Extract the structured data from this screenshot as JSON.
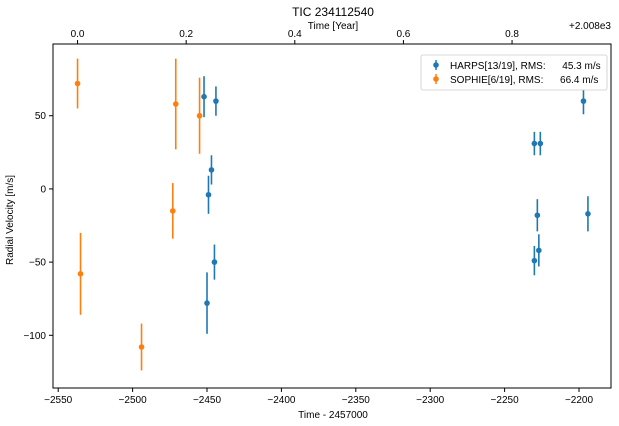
{
  "chart_data": {
    "type": "scatter",
    "title": "TIC 234112540",
    "xlabel": "Time - 2457000",
    "ylabel": "Radial Velocity [m/s]",
    "top_xlabel": "Time [Year]",
    "top_offset_label": "+2.008e3",
    "xlim": [
      -2553.5,
      -2178.5
    ],
    "ylim": [
      -136,
      99
    ],
    "xticks": [
      -2550,
      -2500,
      -2450,
      -2400,
      -2350,
      -2300,
      -2250,
      -2200
    ],
    "xtick_labels": [
      "−2550",
      "−2500",
      "−2450",
      "−2400",
      "−2350",
      "−2300",
      "−2250",
      "−2200"
    ],
    "yticks": [
      -100,
      -50,
      0,
      50
    ],
    "ytick_labels": [
      "−100",
      "−50",
      "0",
      "50"
    ],
    "top_ticks": [
      -2537,
      -2464,
      -2391,
      -2318,
      -2245
    ],
    "top_tick_labels": [
      "0.0",
      "0.2",
      "0.4",
      "0.6",
      "0.8"
    ],
    "grid": false,
    "legend_position": "top-right",
    "series": [
      {
        "name": "HARPS[13/19], RMS:      45.3 m/s",
        "color": "#1f77b4",
        "points": [
          {
            "x": -2452,
            "y": 63,
            "err": 14
          },
          {
            "x": -2444,
            "y": 60,
            "err": 10
          },
          {
            "x": -2447,
            "y": 13,
            "err": 10
          },
          {
            "x": -2449,
            "y": -4,
            "err": 13
          },
          {
            "x": -2445,
            "y": -50,
            "err": 12
          },
          {
            "x": -2450,
            "y": -78,
            "err": 21
          },
          {
            "x": -2230,
            "y": 31,
            "err": 8
          },
          {
            "x": -2226,
            "y": 31,
            "err": 8
          },
          {
            "x": -2228,
            "y": -18,
            "err": 11
          },
          {
            "x": -2230,
            "y": -49,
            "err": 10
          },
          {
            "x": -2227,
            "y": -42,
            "err": 11
          },
          {
            "x": -2197,
            "y": 60,
            "err": 9
          },
          {
            "x": -2194,
            "y": -17,
            "err": 12
          }
        ]
      },
      {
        "name": "SOPHIE[6/19], RMS:      66.4 m/s",
        "color": "#ff7f0e",
        "points": [
          {
            "x": -2537,
            "y": 72,
            "err": 17
          },
          {
            "x": -2535,
            "y": -58,
            "err": 28
          },
          {
            "x": -2471,
            "y": 58,
            "err": 31
          },
          {
            "x": -2473,
            "y": -15,
            "err": 19
          },
          {
            "x": -2455,
            "y": 50,
            "err": 26
          },
          {
            "x": -2494,
            "y": -108,
            "err": 16
          }
        ]
      }
    ]
  }
}
